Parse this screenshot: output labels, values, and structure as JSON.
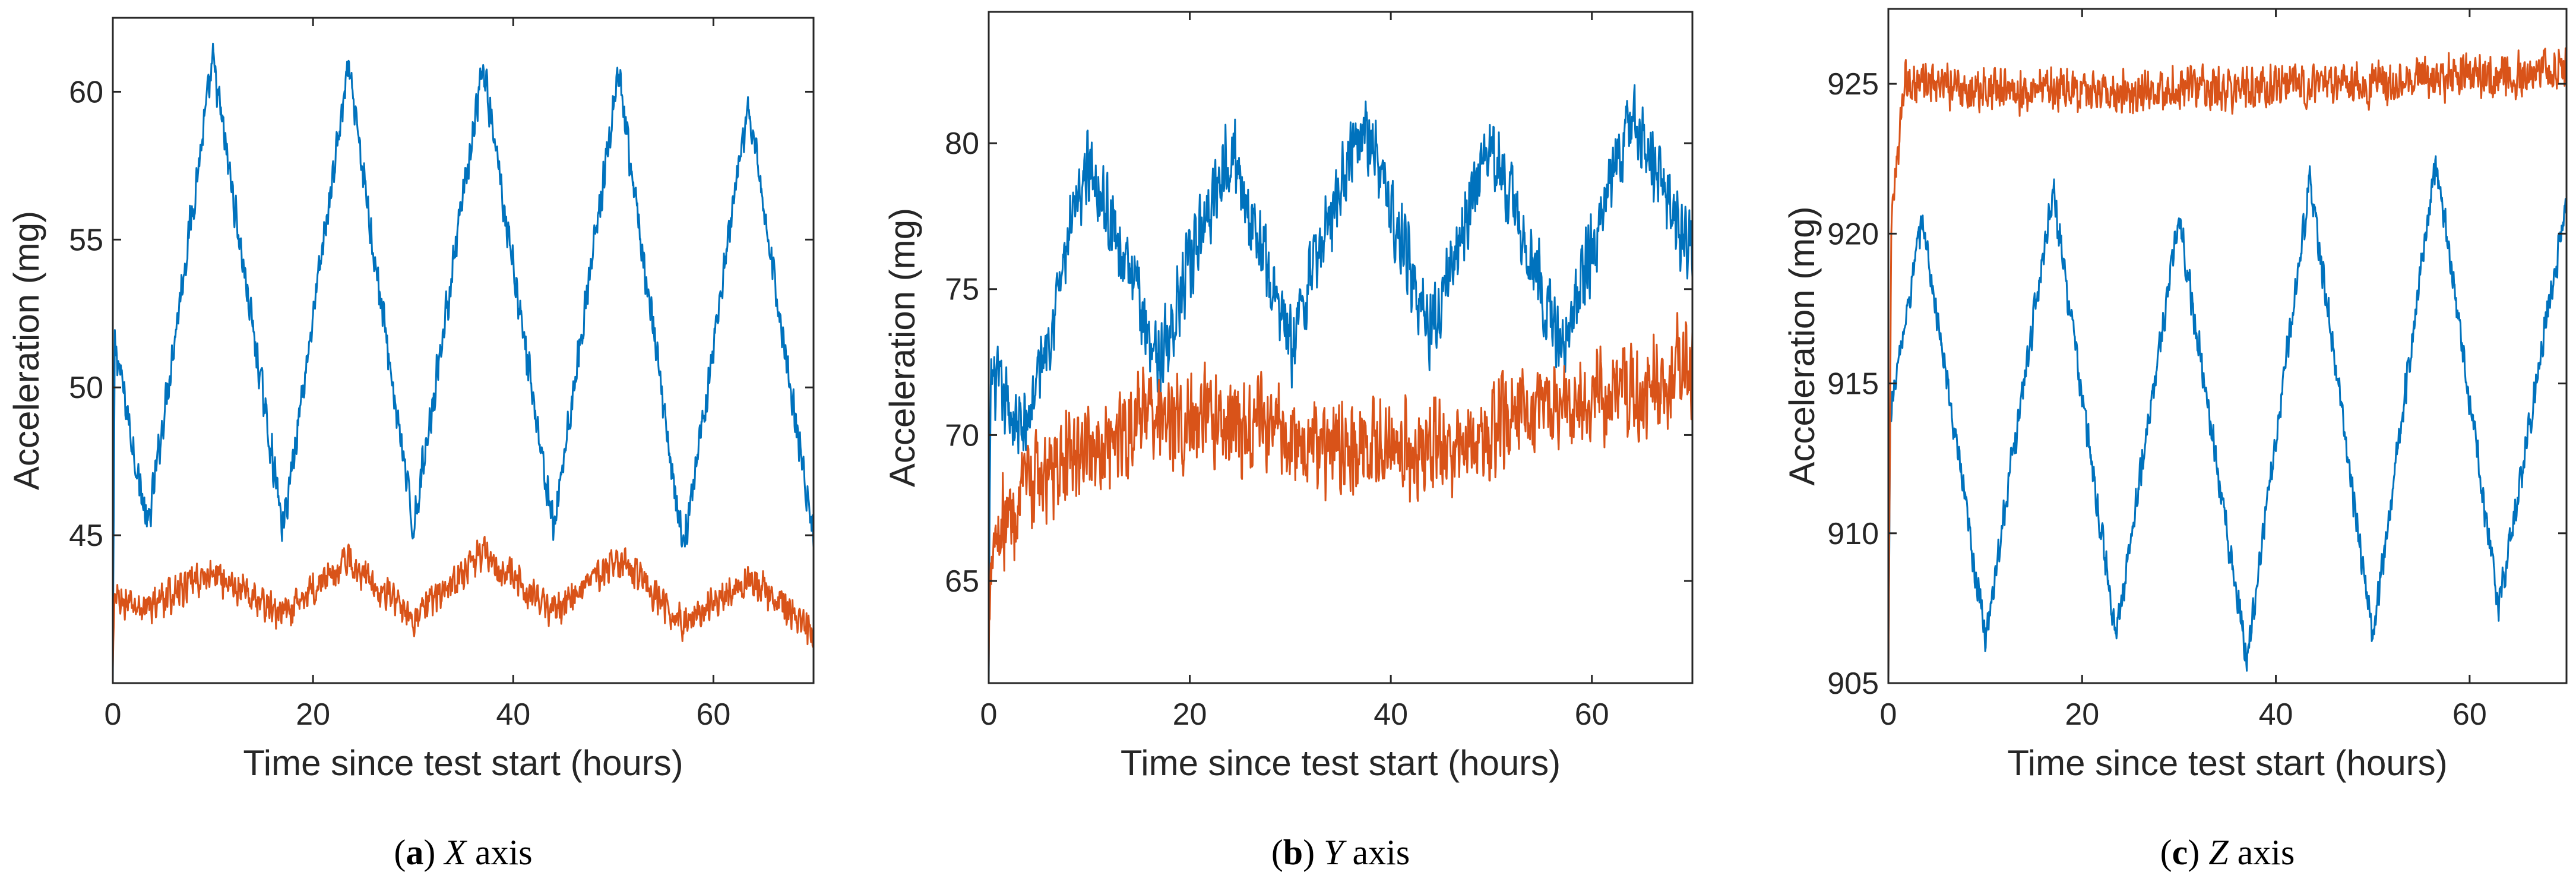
{
  "figure": {
    "colors": {
      "series_blue": "#0072BD",
      "series_orange": "#D95319",
      "axis": "#262626"
    }
  },
  "chart_data": [
    {
      "type": "line",
      "id": "panel-a",
      "caption": {
        "letter": "a",
        "axis_name": "X",
        "suffix": " axis"
      },
      "xlabel": "Time since test start (hours)",
      "ylabel": "Acceleration (mg)",
      "xlim": [
        0,
        70
      ],
      "ylim": [
        40,
        62.5
      ],
      "xticks": [
        0,
        20,
        40,
        60
      ],
      "yticks": [
        45,
        50,
        55,
        60
      ],
      "series": [
        {
          "name": "blue",
          "color": "#0072BD",
          "x": [
            0,
            0.2,
            3.5,
            10,
            17,
            23.5,
            30,
            37,
            44,
            50.5,
            57,
            63.5,
            70
          ],
          "y": [
            40,
            51.5,
            45.2,
            61,
            45.2,
            60.8,
            45.2,
            60.8,
            45.2,
            60.5,
            44.5,
            59.5,
            44.8
          ],
          "noise": 0.8
        },
        {
          "name": "orange",
          "color": "#D95319",
          "x": [
            0,
            0.2,
            3,
            10,
            17,
            23.5,
            30,
            37,
            44,
            50.5,
            57,
            63.5,
            70
          ],
          "y": [
            40.5,
            42.8,
            42.5,
            43.7,
            42.3,
            44.2,
            42.2,
            44.4,
            42.4,
            44.2,
            42.0,
            43.5,
            41.8
          ],
          "noise": 0.7
        }
      ]
    },
    {
      "type": "line",
      "id": "panel-b",
      "caption": {
        "letter": "b",
        "axis_name": "Y",
        "suffix": " axis"
      },
      "xlabel": "Time since test start (hours)",
      "ylabel": "Acceleration (mg)",
      "xlim": [
        0,
        70
      ],
      "ylim": [
        61.5,
        84.5
      ],
      "xticks": [
        0,
        20,
        40,
        60
      ],
      "yticks": [
        65,
        70,
        75,
        80
      ],
      "series": [
        {
          "name": "blue",
          "color": "#0072BD",
          "x": [
            0,
            0.2,
            3.5,
            10,
            17,
            24,
            30,
            37,
            44,
            50,
            57,
            64,
            70
          ],
          "y": [
            61.5,
            72,
            70,
            79.5,
            72.5,
            80,
            73,
            81,
            73.5,
            80,
            73,
            81,
            76
          ],
          "noise": 1.6
        },
        {
          "name": "orange",
          "color": "#D95319",
          "x": [
            0,
            0.2,
            5,
            15,
            25,
            35,
            45,
            55,
            65,
            70
          ],
          "y": [
            62,
            66.5,
            68.5,
            70.5,
            70.5,
            69.5,
            69.5,
            71,
            71.5,
            72.5
          ],
          "noise": 2.0
        }
      ]
    },
    {
      "type": "line",
      "id": "panel-c",
      "caption": {
        "letter": "c",
        "axis_name": "Z",
        "suffix": " axis"
      },
      "xlabel": "Time since test start (hours)",
      "ylabel": "Acceleration (mg)",
      "xlim": [
        0,
        70
      ],
      "ylim": [
        905,
        927.5
      ],
      "xticks": [
        0,
        20,
        40,
        60
      ],
      "yticks": [
        905,
        910,
        915,
        920,
        925
      ],
      "series": [
        {
          "name": "blue",
          "color": "#0072BD",
          "x": [
            0,
            0.2,
            3.5,
            10,
            17,
            23.5,
            30,
            37,
            43.5,
            50,
            56.5,
            63,
            70
          ],
          "y": [
            905,
            914,
            920.5,
            906.5,
            921.5,
            906.5,
            920.5,
            905.8,
            921.8,
            906.5,
            922.5,
            907.5,
            921
          ],
          "noise": 0.7
        },
        {
          "name": "orange",
          "color": "#D95319",
          "x": [
            0,
            0.3,
            1.5,
            10,
            20,
            30,
            40,
            50,
            60,
            70
          ],
          "y": [
            905,
            920,
            925,
            924.8,
            924.8,
            924.8,
            924.9,
            925.0,
            925.2,
            925.4
          ],
          "noise": 0.9
        }
      ]
    }
  ]
}
